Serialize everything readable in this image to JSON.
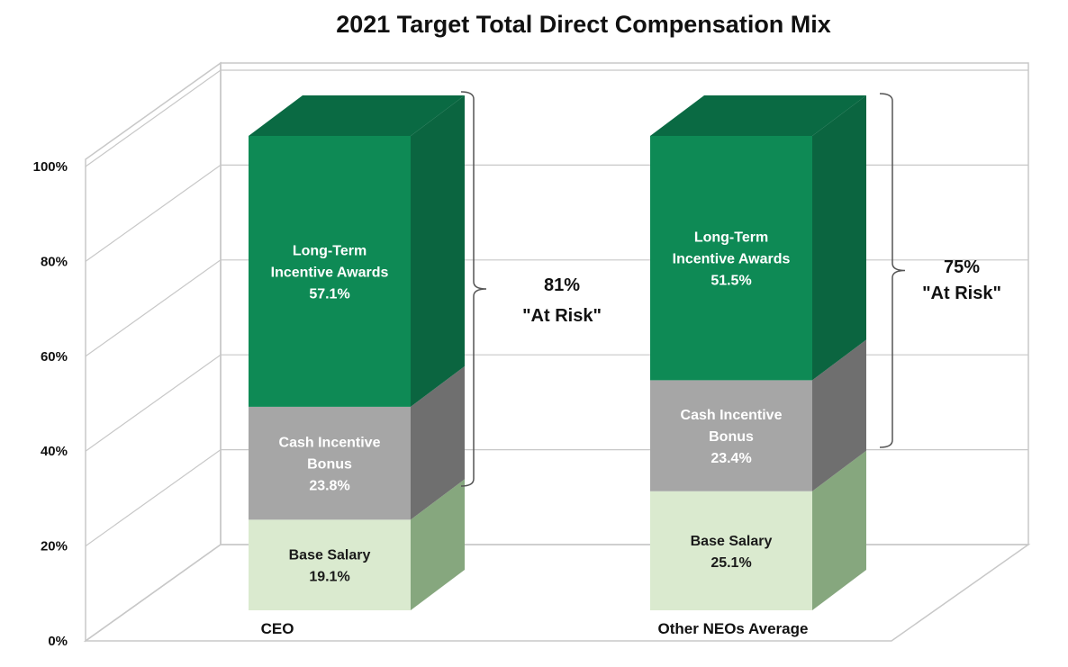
{
  "chart_data": {
    "type": "bar",
    "stacked": true,
    "three_d": true,
    "title": "2021 Target Total Direct Compensation Mix",
    "xlabel": "",
    "ylabel": "",
    "ylim": [
      0,
      100
    ],
    "grid": true,
    "y_ticks": [
      "0%",
      "20%",
      "40%",
      "60%",
      "80%",
      "100%"
    ],
    "y_tick_values": [
      0,
      20,
      40,
      60,
      80,
      100
    ],
    "categories": [
      "CEO",
      "Other NEOs Average"
    ],
    "series": [
      {
        "name": "Base Salary",
        "values": [
          19.1,
          25.1
        ],
        "label_lines": [
          [
            "Base Salary",
            "19.1%"
          ],
          [
            "Base Salary",
            "25.1%"
          ]
        ],
        "colors": {
          "front": "#daeacf",
          "side": "#86a77e",
          "top": "#bcd6ae",
          "text": "#1a1a1a"
        }
      },
      {
        "name": "Cash Incentive Bonus",
        "values": [
          23.8,
          23.4
        ],
        "label_lines": [
          [
            "Cash Incentive",
            "Bonus",
            "23.8%"
          ],
          [
            "Cash Incentive",
            "Bonus",
            "23.4%"
          ]
        ],
        "colors": {
          "front": "#a6a6a6",
          "side": "#6f6f6f",
          "top": "#8c8c8c",
          "text": "#ffffff"
        }
      },
      {
        "name": "Long-Term Incentive Awards",
        "values": [
          57.1,
          51.5
        ],
        "label_lines": [
          [
            "Long-Term",
            "Incentive Awards",
            "57.1%"
          ],
          [
            "Long-Term",
            "Incentive Awards",
            "51.5%"
          ]
        ],
        "colors": {
          "front": "#0e8a55",
          "side": "#0b6540",
          "top": "#0a6a43",
          "text": "#ffffff"
        }
      }
    ],
    "annotations": [
      {
        "category": "CEO",
        "percent": "81%",
        "text": "\"At Risk\"",
        "covers": [
          "Cash Incentive Bonus",
          "Long-Term Incentive Awards"
        ]
      },
      {
        "category": "Other NEOs Average",
        "percent": "75%",
        "text": "\"At Risk\"",
        "covers": [
          "Cash Incentive Bonus",
          "Long-Term Incentive Awards"
        ]
      }
    ]
  }
}
